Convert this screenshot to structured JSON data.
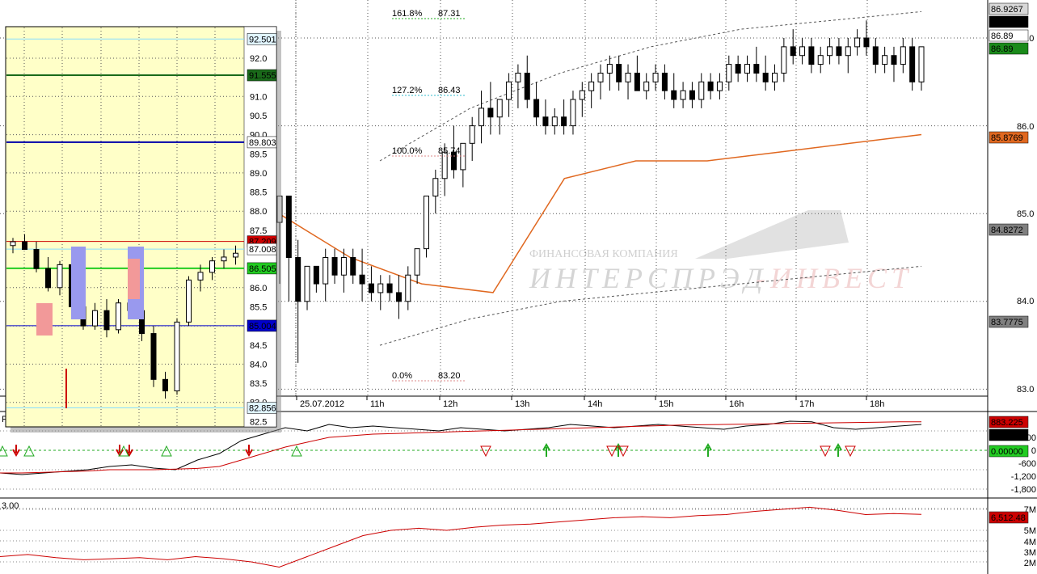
{
  "watermark": {
    "line1": "ФИНАНСОВАЯ КОМПАНИЯ",
    "line2a": "ИНТЕРСПРЭД",
    "line2b": "-ИНВЕСТ"
  },
  "colors": {
    "bollinger": "#555555",
    "vwap": "#e06820",
    "osc_main": "#000000",
    "osc_signal": "#cc0000",
    "volume": "#cc0000",
    "fib": "#22aa22",
    "inset_bg": "#ffffc8",
    "arrow_up": "#22aa22",
    "arrow_down": "#cc0000"
  },
  "main": {
    "xlabels": [
      "25.07.2012",
      "11h",
      "12h",
      "13h",
      "14h",
      "14h",
      "15h",
      "16h",
      "17h",
      "18h"
    ],
    "ytick_labels": [
      "87.0",
      "86.0",
      "85.0",
      "84.0",
      "83.0"
    ],
    "badges": [
      {
        "text": "86.9267",
        "bg": "#d8d8d8",
        "fg": "#000000"
      },
      {
        "text": "86.89",
        "bg": "#000000",
        "fg": "#ffffff"
      },
      {
        "text": "86.89",
        "bg": "#ffffff",
        "fg": "#000000"
      },
      {
        "text": "86.89",
        "bg": "#1a8a1a",
        "fg": "#ffffff"
      },
      {
        "text": "85.8769",
        "bg": "#e06820",
        "fg": "#000000"
      },
      {
        "text": "84.8272",
        "bg": "#808080",
        "fg": "#000000"
      },
      {
        "text": "83.7775",
        "bg": "#808080",
        "fg": "#000000"
      }
    ],
    "fib": [
      {
        "pct": "161.8%",
        "val": "87.31"
      },
      {
        "pct": "127.2%",
        "val": "86.43"
      },
      {
        "pct": "100.0%",
        "val": "85.74"
      },
      {
        "pct": "0.0%",
        "val": "83.20"
      }
    ]
  },
  "inset": {
    "ytick_labels": [
      "92.0",
      "91.0",
      "90.5",
      "90.0",
      "89.5",
      "89.0",
      "88.5",
      "88.0",
      "87.5",
      "86.0",
      "85.5",
      "84.5",
      "84.0",
      "83.5",
      "83.0",
      "82.5"
    ],
    "badges": [
      {
        "text": "92.501",
        "bg": "#e0f4ff",
        "fg": "#000080"
      },
      {
        "text": "91.555",
        "bg": "#1a6a1a",
        "fg": "#ffffff"
      },
      {
        "text": "89.803",
        "bg": "#ffffff",
        "fg": "#0000aa"
      },
      {
        "text": "87.209",
        "bg": "#cc0000",
        "fg": "#ffffff"
      },
      {
        "text": "87.008",
        "bg": "#ffffff",
        "fg": "#000080"
      },
      {
        "text": "86.505",
        "bg": "#22cc22",
        "fg": "#ffffff"
      },
      {
        "text": "85.004",
        "bg": "#0000cc",
        "fg": "#ffffff"
      },
      {
        "text": "82.856",
        "bg": "#e0f4ff",
        "fg": "#000080"
      }
    ]
  },
  "oscillator": {
    "ytick_labels": [
      "600",
      "0",
      "-600",
      "-1,200",
      "-1,800"
    ],
    "badges": [
      {
        "text": "883.225",
        "bg": "#cc0000",
        "fg": "#ffffff"
      },
      {
        "text": "799",
        "bg": "#000000",
        "fg": "#ffffff"
      },
      {
        "text": "0.00000",
        "bg": "#22cc22",
        "fg": "#000000"
      }
    ],
    "corner_label": "P"
  },
  "volume_panel": {
    "corner_label": "3.00",
    "ytick_labels": [
      "7M",
      "5M",
      "4M",
      "3M",
      "2M"
    ],
    "badge": {
      "text": "6,512.48",
      "bg": "#cc0000",
      "fg": "#ffffff"
    }
  },
  "chart_data": [
    {
      "type": "candlestick",
      "title": "",
      "ylim": [
        82.8,
        87.2
      ],
      "candles": [
        [
          84.9,
          85.2,
          84.2,
          85.2
        ],
        [
          85.2,
          85.2,
          84.0,
          84.5
        ],
        [
          84.5,
          84.7,
          83.3,
          84.0
        ],
        [
          84.0,
          84.4,
          83.9,
          84.4
        ],
        [
          84.4,
          84.4,
          84.1,
          84.2
        ],
        [
          84.2,
          84.6,
          84.0,
          84.5
        ],
        [
          84.5,
          84.6,
          84.2,
          84.3
        ],
        [
          84.3,
          84.6,
          84.1,
          84.5
        ],
        [
          84.5,
          84.6,
          84.2,
          84.3
        ],
        [
          84.3,
          84.6,
          84.0,
          84.2
        ],
        [
          84.2,
          84.4,
          84.0,
          84.1
        ],
        [
          84.1,
          84.3,
          83.9,
          84.2
        ],
        [
          84.2,
          84.3,
          84.0,
          84.1
        ],
        [
          84.1,
          84.3,
          83.8,
          84.0
        ],
        [
          84.0,
          84.4,
          83.9,
          84.3
        ],
        [
          84.3,
          84.6,
          84.2,
          84.6
        ],
        [
          84.6,
          85.2,
          84.5,
          85.2
        ],
        [
          85.2,
          85.5,
          85.0,
          85.4
        ],
        [
          85.4,
          85.8,
          85.2,
          85.7
        ],
        [
          85.7,
          86.0,
          85.4,
          85.5
        ],
        [
          85.5,
          85.8,
          85.3,
          85.8
        ],
        [
          85.8,
          86.1,
          85.6,
          86.0
        ],
        [
          86.0,
          86.4,
          85.8,
          86.2
        ],
        [
          86.2,
          86.5,
          85.9,
          86.1
        ],
        [
          86.1,
          86.3,
          85.9,
          86.3
        ],
        [
          86.3,
          86.6,
          86.1,
          86.5
        ],
        [
          86.5,
          86.7,
          86.2,
          86.6
        ],
        [
          86.6,
          86.8,
          86.2,
          86.3
        ],
        [
          86.3,
          86.5,
          86.0,
          86.1
        ],
        [
          86.1,
          86.3,
          85.9,
          86.0
        ],
        [
          86.0,
          86.2,
          85.9,
          86.1
        ],
        [
          86.1,
          86.3,
          85.9,
          86.0
        ],
        [
          86.0,
          86.4,
          85.9,
          86.3
        ],
        [
          86.3,
          86.5,
          86.1,
          86.4
        ],
        [
          86.4,
          86.6,
          86.2,
          86.5
        ],
        [
          86.5,
          86.7,
          86.3,
          86.6
        ],
        [
          86.6,
          86.8,
          86.4,
          86.7
        ],
        [
          86.7,
          86.8,
          86.4,
          86.5
        ],
        [
          86.5,
          86.7,
          86.3,
          86.6
        ],
        [
          86.6,
          86.8,
          86.4,
          86.4
        ],
        [
          86.4,
          86.6,
          86.3,
          86.5
        ],
        [
          86.5,
          86.7,
          86.4,
          86.6
        ],
        [
          86.6,
          86.7,
          86.3,
          86.4
        ],
        [
          86.4,
          86.6,
          86.2,
          86.3
        ],
        [
          86.3,
          86.5,
          86.2,
          86.4
        ],
        [
          86.4,
          86.5,
          86.2,
          86.3
        ],
        [
          86.3,
          86.6,
          86.2,
          86.5
        ],
        [
          86.5,
          86.6,
          86.3,
          86.4
        ],
        [
          86.4,
          86.6,
          86.3,
          86.5
        ],
        [
          86.5,
          86.8,
          86.4,
          86.7
        ],
        [
          86.7,
          86.8,
          86.5,
          86.6
        ],
        [
          86.6,
          86.8,
          86.5,
          86.7
        ],
        [
          86.7,
          86.9,
          86.5,
          86.6
        ],
        [
          86.6,
          86.8,
          86.4,
          86.5
        ],
        [
          86.5,
          86.7,
          86.4,
          86.6
        ],
        [
          86.6,
          87.0,
          86.5,
          86.9
        ],
        [
          86.9,
          87.1,
          86.7,
          86.8
        ],
        [
          86.8,
          87.0,
          86.7,
          86.9
        ],
        [
          86.9,
          87.0,
          86.6,
          86.7
        ],
        [
          86.7,
          86.9,
          86.6,
          86.8
        ],
        [
          86.8,
          87.0,
          86.7,
          86.9
        ],
        [
          86.9,
          87.0,
          86.7,
          86.8
        ],
        [
          86.8,
          87.0,
          86.6,
          86.9
        ],
        [
          86.9,
          87.1,
          86.8,
          87.0
        ],
        [
          87.0,
          87.2,
          86.8,
          86.9
        ],
        [
          86.9,
          87.0,
          86.6,
          86.7
        ],
        [
          86.7,
          86.9,
          86.6,
          86.8
        ],
        [
          86.8,
          86.9,
          86.5,
          86.7
        ],
        [
          86.7,
          87.0,
          86.6,
          86.9
        ],
        [
          86.9,
          87.0,
          86.4,
          86.5
        ],
        [
          86.5,
          86.9,
          86.4,
          86.9
        ]
      ],
      "bollinger_upper": [
        85.6,
        86.2,
        86.6,
        86.9,
        87.1,
        87.2,
        87.3
      ],
      "bollinger_lower": [
        83.5,
        83.8,
        84.0,
        84.1,
        84.2,
        84.3,
        84.4
      ],
      "vwap": [
        85.0,
        84.5,
        84.2,
        84.1,
        85.4,
        85.6,
        85.6,
        85.7,
        85.8,
        85.9
      ]
    },
    {
      "type": "line",
      "title": "",
      "ylim": [
        -2000,
        1000
      ],
      "series": [
        {
          "values": [
            -700,
            -750,
            -700,
            -650,
            -600,
            -500,
            -450,
            -550,
            -600,
            -300,
            -100,
            300,
            500,
            700,
            600,
            800,
            700,
            750,
            700,
            650,
            600,
            700,
            650,
            600,
            650,
            700,
            800,
            750,
            700,
            750,
            800,
            750,
            700,
            650,
            750,
            800,
            900,
            880,
            700,
            650,
            700,
            750,
            800
          ]
        },
        {
          "values": [
            -700,
            -700,
            -680,
            -660,
            -640,
            -600,
            -600,
            -600,
            -580,
            -560,
            -500,
            -300,
            -100,
            100,
            250,
            400,
            450,
            500,
            520,
            540,
            560,
            580,
            600,
            620,
            640,
            660,
            680,
            700,
            720,
            740,
            760,
            780,
            790,
            800,
            810,
            820,
            830,
            840,
            850,
            860,
            870,
            880,
            883
          ]
        }
      ]
    },
    {
      "type": "line",
      "title": "",
      "ylim": [
        1000000,
        8000000
      ],
      "series": [
        {
          "values": [
            2500000,
            2700000,
            2400000,
            2200000,
            2300000,
            2400000,
            2200000,
            2500000,
            2300000,
            2000000,
            1500000,
            2500000,
            3500000,
            4500000,
            5000000,
            5200000,
            5000000,
            5300000,
            5500000,
            5600000,
            5800000,
            6000000,
            6200000,
            6300000,
            6200000,
            6400000,
            6500000,
            6800000,
            7000000,
            7200000,
            6900000,
            6500000,
            6600000,
            6512480
          ]
        }
      ]
    }
  ]
}
